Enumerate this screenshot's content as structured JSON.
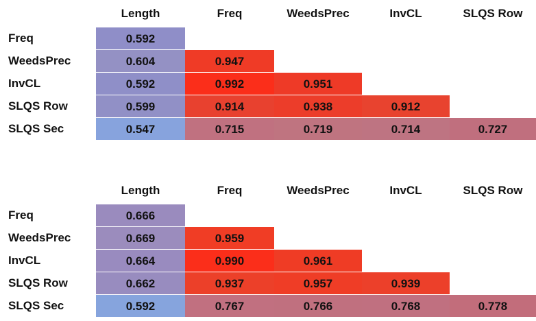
{
  "chart_data": [
    {
      "type": "table",
      "columns": [
        "Length",
        "Freq",
        "WeedsPrec",
        "InvCL",
        "SLQS Row"
      ],
      "rows": [
        "Freq",
        "WeedsPrec",
        "InvCL",
        "SLQS Row",
        "SLQS Sec"
      ],
      "values": [
        [
          "0.592"
        ],
        [
          "0.604",
          "0.947"
        ],
        [
          "0.592",
          "0.992",
          "0.951"
        ],
        [
          "0.599",
          "0.914",
          "0.938",
          "0.912"
        ],
        [
          "0.547",
          "0.715",
          "0.719",
          "0.714",
          "0.727"
        ]
      ],
      "colors": [
        [
          "#8f8ec8"
        ],
        [
          "#9491c4",
          "#ef3b26"
        ],
        [
          "#8f8fc8",
          "#fb2e1a",
          "#ee3a27"
        ],
        [
          "#9190c6",
          "#e8412f",
          "#ec3d2a",
          "#e8432f"
        ],
        [
          "#87a3dd",
          "#c07180",
          "#bf7480",
          "#be7482",
          "#c06f7e"
        ]
      ]
    },
    {
      "type": "table",
      "columns": [
        "Length",
        "Freq",
        "WeedsPrec",
        "InvCL",
        "SLQS Row"
      ],
      "rows": [
        "Freq",
        "WeedsPrec",
        "InvCL",
        "SLQS Row",
        "SLQS Sec"
      ],
      "values": [
        [
          "0.666"
        ],
        [
          "0.669",
          "0.959"
        ],
        [
          "0.664",
          "0.990",
          "0.961"
        ],
        [
          "0.662",
          "0.937",
          "0.957",
          "0.939"
        ],
        [
          "0.592",
          "0.767",
          "0.766",
          "0.768",
          "0.778"
        ]
      ],
      "colors": [
        [
          "#9a8bbe"
        ],
        [
          "#9b8cbd",
          "#f03d25"
        ],
        [
          "#998bbf",
          "#fb2e1a",
          "#ef3c25"
        ],
        [
          "#988cbf",
          "#ec4029",
          "#ef3d26",
          "#ec402a"
        ],
        [
          "#86a4dd",
          "#c17080",
          "#c0707f",
          "#c07080",
          "#c26d7b"
        ]
      ]
    }
  ]
}
